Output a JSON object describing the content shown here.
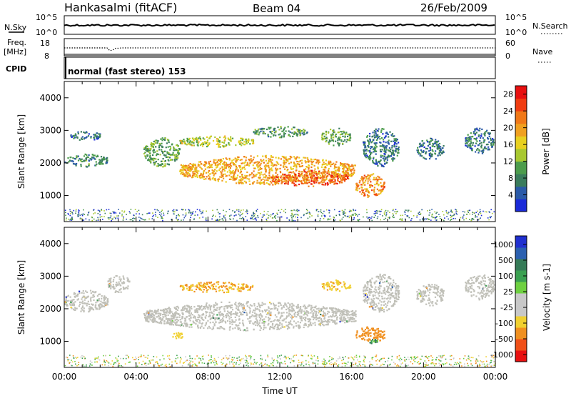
{
  "header": {
    "station": "Hankasalmi (fitACF)",
    "beam": "Beam 04",
    "date": "26/Feb/2009"
  },
  "panels": {
    "nsky": {
      "label": "N.Sky",
      "left_top": "10^5",
      "left_bottom": "10^0",
      "right_top": "10^5",
      "right_bottom": "10^0",
      "right_label": "N.Search"
    },
    "freq": {
      "label_line1": "Freq.",
      "label_line2": "[MHz]",
      "left_top": "18",
      "left_bottom": "8",
      "right_top": "60",
      "right_bottom": "0",
      "right_label": "Nave"
    },
    "cpid": {
      "label": "CPID",
      "text": "normal (fast stereo) 153"
    }
  },
  "colors": {
    "power_scale": [
      "#1a2ad8",
      "#2a5aa8",
      "#3a7c5c",
      "#4c9c4c",
      "#a8c830",
      "#e8d020",
      "#f0a020",
      "#f07818",
      "#f03c10",
      "#e81010"
    ],
    "velocity_scale": [
      "#2030d0",
      "#2b60b0",
      "#357a57",
      "#3aa050",
      "#6ed040",
      "#c8c8c8",
      "#c8c8c8",
      "#f0d030",
      "#f09020",
      "#f05018",
      "#e81010"
    ],
    "ground_scatter": "#c0c0b8"
  },
  "chart_data": [
    {
      "type": "heatmap",
      "title": "",
      "ylabel": "Slant Range [km]",
      "xlabel": "",
      "xlim": [
        0,
        24
      ],
      "ylim": [
        200,
        4500
      ],
      "y_ticks": [
        "1000",
        "2000",
        "3000",
        "4000"
      ],
      "colorbar": {
        "label": "Power [dB]",
        "ticks": [
          "4",
          "8",
          "12",
          "16",
          "20",
          "24",
          "28"
        ],
        "range": [
          0,
          30
        ]
      },
      "echo_regions": [
        {
          "t_start": 0.0,
          "t_end": 2.4,
          "range_low": 1900,
          "range_high": 2300,
          "power_db": 7
        },
        {
          "t_start": 0.3,
          "t_end": 2.0,
          "range_low": 2700,
          "range_high": 3000,
          "power_db": 5
        },
        {
          "t_start": 4.4,
          "t_end": 6.4,
          "range_low": 1900,
          "range_high": 2800,
          "power_db": 10
        },
        {
          "t_start": 6.4,
          "t_end": 10.5,
          "range_low": 2500,
          "range_high": 2850,
          "power_db": 14
        },
        {
          "t_start": 6.4,
          "t_end": 16.2,
          "range_low": 1350,
          "range_high": 2250,
          "power_db": 20
        },
        {
          "t_start": 11.5,
          "t_end": 15.8,
          "range_low": 1300,
          "range_high": 1800,
          "power_db": 25
        },
        {
          "t_start": 10.5,
          "t_end": 13.5,
          "range_low": 2800,
          "range_high": 3150,
          "power_db": 8
        },
        {
          "t_start": 14.3,
          "t_end": 15.9,
          "range_low": 2550,
          "range_high": 3100,
          "power_db": 10
        },
        {
          "t_start": 16.2,
          "t_end": 17.8,
          "range_low": 950,
          "range_high": 1700,
          "power_db": 22
        },
        {
          "t_start": 16.6,
          "t_end": 18.6,
          "range_low": 1900,
          "range_high": 3100,
          "power_db": 6
        },
        {
          "t_start": 19.6,
          "t_end": 21.1,
          "range_low": 2100,
          "range_high": 2800,
          "power_db": 6
        },
        {
          "t_start": 22.3,
          "t_end": 23.9,
          "range_low": 2300,
          "range_high": 3100,
          "power_db": 6
        }
      ]
    },
    {
      "type": "heatmap",
      "title": "",
      "ylabel": "Slant Range [km]",
      "xlabel": "Time UT",
      "xlim": [
        0,
        24
      ],
      "ylim": [
        200,
        4500
      ],
      "y_ticks": [
        "1000",
        "2000",
        "3000",
        "4000"
      ],
      "x_ticks": [
        "00:00",
        "04:00",
        "08:00",
        "12:00",
        "16:00",
        "20:00",
        "00:00"
      ],
      "colorbar": {
        "label": "Velocity [m s-1]",
        "ticks": [
          "1000",
          "500",
          "100",
          "25",
          "-25",
          "-100",
          "-500",
          "-1000"
        ],
        "range": [
          -1000,
          1000
        ]
      },
      "echo_regions": [
        {
          "t_start": 0.0,
          "t_end": 2.4,
          "range_low": 1900,
          "range_high": 2600,
          "velocity": 0,
          "ground_scatter": true
        },
        {
          "t_start": 2.4,
          "t_end": 3.6,
          "range_low": 2500,
          "range_high": 3100,
          "velocity": 0,
          "ground_scatter": true
        },
        {
          "t_start": 4.4,
          "t_end": 16.2,
          "range_low": 1350,
          "range_high": 2250,
          "velocity": 0,
          "ground_scatter": true
        },
        {
          "t_start": 6.4,
          "t_end": 10.5,
          "range_low": 2500,
          "range_high": 2850,
          "velocity": -300,
          "ground_scatter": false
        },
        {
          "t_start": 6.0,
          "t_end": 6.6,
          "range_low": 1100,
          "range_high": 1300,
          "velocity": -200,
          "ground_scatter": false
        },
        {
          "t_start": 14.3,
          "t_end": 15.9,
          "range_low": 2550,
          "range_high": 2900,
          "velocity": -250,
          "ground_scatter": false
        },
        {
          "t_start": 16.2,
          "t_end": 17.8,
          "range_low": 950,
          "range_high": 1500,
          "velocity": -400,
          "ground_scatter": false
        },
        {
          "t_start": 16.9,
          "t_end": 17.4,
          "range_low": 950,
          "range_high": 1100,
          "velocity": 80,
          "ground_scatter": false
        },
        {
          "t_start": 16.6,
          "t_end": 18.6,
          "range_low": 1900,
          "range_high": 3100,
          "velocity": 0,
          "ground_scatter": true
        },
        {
          "t_start": 19.6,
          "t_end": 21.1,
          "range_low": 2100,
          "range_high": 2800,
          "velocity": 0,
          "ground_scatter": true
        },
        {
          "t_start": 22.3,
          "t_end": 23.9,
          "range_low": 2300,
          "range_high": 3100,
          "velocity": 0,
          "ground_scatter": true
        }
      ]
    }
  ]
}
